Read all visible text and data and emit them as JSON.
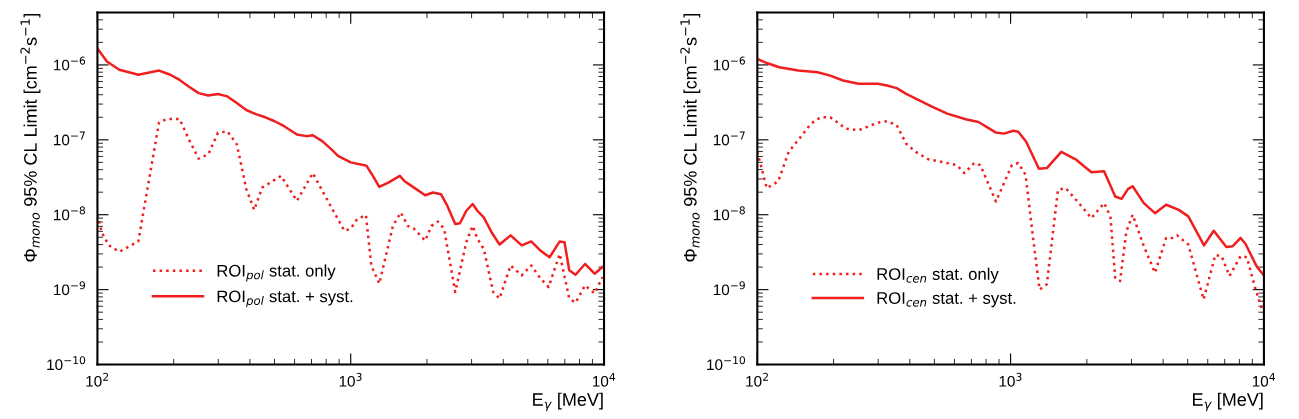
{
  "chart_data": [
    {
      "type": "line",
      "xlabel": "E$_{γ}$ [MeV]",
      "ylabel": "Φ$_{mono}$ 95% CL Limit [cm$^{−2}$s$^{−1}$]",
      "log": "xy",
      "grid": false,
      "legend": "bottom left",
      "marker": "none",
      "xlim": [
        100,
        10000
      ],
      "xticks": [
        {
          "value": 100,
          "label": "10$^{2}$"
        },
        {
          "value": 1000,
          "label": "10$^{3}$"
        },
        {
          "value": 10000,
          "label": "10$^{4}$"
        }
      ],
      "ylim": [
        1e-10,
        5e-06
      ],
      "yticks": [
        {
          "value": 1e-10,
          "label": "10$^{−10}$"
        },
        {
          "value": 1e-09,
          "label": "10$^{−9}$"
        },
        {
          "value": 1e-08,
          "label": "10$^{−8}$"
        },
        {
          "value": 1e-07,
          "label": "10$^{−7}$"
        },
        {
          "value": 1e-06,
          "label": "10$^{−6}$"
        }
      ],
      "series": [
        {
          "name": "ROI$_{pol}$ stat. only",
          "color": "#f01e1e",
          "line_style": "dotted",
          "x": [
            100,
            104,
            111,
            122,
            145,
            175,
            188,
            211,
            230,
            251,
            274,
            299,
            326,
            355,
            387,
            416,
            447,
            531,
            613,
            708,
            818,
            944,
            1000,
            1059,
            1148,
            1206,
            1296,
            1468,
            1576,
            1679,
            1778,
            1967,
            2085,
            2208,
            2336,
            2585,
            2860,
            3030,
            3162,
            3350,
            3652,
            3868,
            4276,
            4732,
            5158,
            5623,
            6043,
            6683,
            7289,
            7718,
            8414,
            9173,
            9862
          ],
          "values": [
            1e-08,
            5.8e-09,
            3.9e-09,
            3.2e-09,
            4.4e-09,
            1.7e-07,
            1.9e-07,
            1.9e-07,
            1e-07,
            5.6e-08,
            6.4e-08,
            1.24e-07,
            1.3e-07,
            8.7e-08,
            2.2e-08,
            1.16e-08,
            2.3e-08,
            3.3e-08,
            1.53e-08,
            3.6e-08,
            1.46e-08,
            6.1e-09,
            6.5e-09,
            8.7e-09,
            9.9e-09,
            2.1e-09,
            1.2e-09,
            7.1e-09,
            1.07e-08,
            7.1e-09,
            6.5e-09,
            4.5e-09,
            7.1e-09,
            8.1e-09,
            6.5e-09,
            9.3e-10,
            4.3e-09,
            7.1e-09,
            4.8e-09,
            3.5e-09,
            9.3e-10,
            7.6e-10,
            2.1e-09,
            1.55e-09,
            2.1e-09,
            1.4e-09,
            1.08e-09,
            3e-09,
            7.6e-10,
            6.7e-10,
            1.14e-09,
            8.9e-10,
            1.47e-09
          ]
        },
        {
          "name": "ROI$_{pol}$ stat. + syst.",
          "color": "#f01e1e",
          "line_style": "solid",
          "x": [
            100,
            109,
            122,
            145,
            175,
            194,
            211,
            230,
            251,
            274,
            299,
            326,
            355,
            387,
            422,
            460,
            501,
            546,
            613,
            668,
            708,
            772,
            841,
            891,
            1000,
            1155,
            1223,
            1296,
            1413,
            1563,
            1632,
            1778,
            1967,
            2113,
            2270,
            2405,
            2585,
            2700,
            2860,
            3030,
            3162,
            3350,
            3600,
            3868,
            4276,
            4732,
            5158,
            5623,
            6095,
            6683,
            6982,
            7289,
            7718,
            8414,
            9173,
            9862
          ],
          "values": [
            1.66e-06,
            1.11e-06,
            8.6e-07,
            7.4e-07,
            8.4e-07,
            7.4e-07,
            6.3e-07,
            5.1e-07,
            4.2e-07,
            3.9e-07,
            4.1e-07,
            3.8e-07,
            3.1e-07,
            2.5e-07,
            2.2e-07,
            2e-07,
            1.77e-07,
            1.52e-07,
            1.18e-07,
            1.12e-07,
            1.15e-07,
            9.6e-08,
            7.4e-08,
            6.1e-08,
            5e-08,
            4.5e-08,
            3.3e-08,
            2.35e-08,
            2.7e-08,
            3.3e-08,
            2.8e-08,
            2.3e-08,
            1.82e-08,
            1.98e-08,
            1.88e-08,
            1.32e-08,
            7.5e-09,
            7.7e-09,
            1.13e-08,
            1.39e-08,
            1.13e-08,
            9.2e-09,
            5.8e-09,
            4e-09,
            5.3e-09,
            3.9e-09,
            4.4e-09,
            3.3e-09,
            2.7e-09,
            4.4e-09,
            4.3e-09,
            1.81e-09,
            1.58e-09,
            2.2e-09,
            1.63e-09,
            2e-09
          ]
        }
      ]
    },
    {
      "type": "line",
      "xlabel": "E$_{γ}$ [MeV]",
      "ylabel": "Φ$_{mono}$ 95% CL Limit [cm$^{−2}$s$^{−1}$]",
      "log": "xy",
      "grid": false,
      "legend": "bottom left",
      "marker": "none",
      "xlim": [
        100,
        10000
      ],
      "xticks": [
        {
          "value": 100,
          "label": "10$^{2}$"
        },
        {
          "value": 1000,
          "label": "10$^{3}$"
        },
        {
          "value": 10000,
          "label": "10$^{4}$"
        }
      ],
      "ylim": [
        1e-10,
        5e-06
      ],
      "yticks": [
        {
          "value": 1e-10,
          "label": "10$^{−10}$"
        },
        {
          "value": 1e-09,
          "label": "10$^{−9}$"
        },
        {
          "value": 1e-08,
          "label": "10$^{−8}$"
        },
        {
          "value": 1e-07,
          "label": "10$^{−7}$"
        },
        {
          "value": 1e-06,
          "label": "10$^{−6}$"
        }
      ],
      "series": [
        {
          "name": "ROI$_{cen}$ stat. only",
          "color": "#f01e1e",
          "line_style": "dotted",
          "x": [
            100,
            109,
            121,
            133,
            150,
            163,
            178,
            194,
            224,
            251,
            299,
            325,
            355,
            387,
            422,
            473,
            531,
            613,
            657,
            718,
            759,
            875,
            1012,
            1072,
            1146,
            1222,
            1301,
            1390,
            1538,
            1652,
            1883,
            2084,
            2339,
            2477,
            2588,
            2704,
            2864,
            3033,
            3356,
            3715,
            4110,
            4355,
            4544,
            5028,
            5780,
            6427,
            6808,
            7311,
            8092,
            8570,
            9226,
            9820
          ],
          "values": [
            6.9e-08,
            2.26e-08,
            2.8e-08,
            6.9e-08,
            1.15e-07,
            1.65e-07,
            2e-07,
            2e-07,
            1.41e-07,
            1.34e-07,
            1.7e-07,
            1.77e-07,
            1.57e-07,
            8.9e-08,
            6.9e-08,
            5.5e-08,
            5.1e-08,
            4.6e-08,
            3.6e-08,
            4.9e-08,
            4.6e-08,
            1.5e-08,
            4.6e-08,
            4.9e-08,
            3.4e-08,
            5.4e-09,
            1e-09,
            1.18e-09,
            2.15e-08,
            2.26e-08,
            1.36e-08,
            9e-09,
            1.43e-08,
            9.5e-09,
            1.44e-09,
            1.3e-09,
            6e-09,
            1e-08,
            3.8e-09,
            1.68e-09,
            4.9e-09,
            4.9e-09,
            5.3e-09,
            4e-09,
            7.4e-10,
            2.9e-09,
            2.8e-09,
            1.52e-09,
            2.8e-09,
            2.7e-09,
            1.06e-09,
            5.5e-10
          ]
        },
        {
          "name": "ROI$_{cen}$ stat. + syst.",
          "color": "#f01e1e",
          "line_style": "solid",
          "x": [
            100,
            109,
            122,
            145,
            173,
            194,
            218,
            251,
            299,
            325,
            355,
            387,
            434,
            487,
            562,
            665,
            747,
            875,
            941,
            1026,
            1072,
            1152,
            1293,
            1390,
            1585,
            1805,
            2084,
            2339,
            2588,
            2741,
            2904,
            3033,
            3356,
            3715,
            4110,
            4613,
            5028,
            5801,
            6336,
            7108,
            7530,
            8092,
            8453,
            9350,
            9910
          ],
          "values": [
            1.2e-06,
            1.06e-06,
            9.3e-07,
            8.4e-07,
            8e-07,
            7.2e-07,
            6.2e-07,
            5.6e-07,
            5.6e-07,
            5.3e-07,
            4.9e-07,
            4.1e-07,
            3.4e-07,
            2.8e-07,
            2.24e-07,
            1.88e-07,
            1.73e-07,
            1.25e-07,
            1.21e-07,
            1.32e-07,
            1.28e-07,
            9.4e-08,
            4.1e-08,
            4.2e-08,
            6.9e-08,
            5.5e-08,
            3.7e-08,
            3.8e-08,
            1.75e-08,
            1.63e-08,
            2.2e-08,
            2.4e-08,
            1.43e-08,
            1.05e-08,
            1.36e-08,
            1.16e-08,
            9.5e-09,
            3.9e-09,
            6.1e-09,
            3.7e-09,
            3.8e-09,
            4.9e-09,
            4.1e-09,
            2.06e-09,
            1.6e-09
          ]
        }
      ]
    }
  ]
}
